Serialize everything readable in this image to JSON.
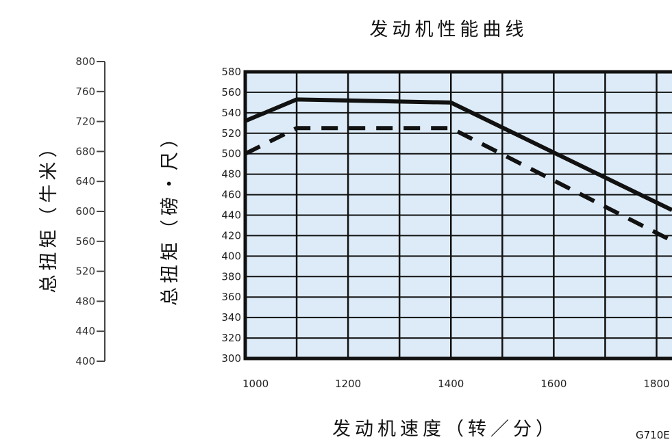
{
  "chart_data": {
    "type": "line",
    "title": "发动机性能曲线",
    "xlabel": "发动机速度（转／分）",
    "ylabel": "总扭矩（磅・尺）",
    "ylabel_secondary": "总扭矩（牛米）",
    "xlim": [
      1000,
      1830
    ],
    "ylim": [
      300,
      580
    ],
    "ylim_secondary": [
      400,
      800
    ],
    "x_ticks": [
      "1000",
      "1200",
      "1400",
      "1600",
      "1800"
    ],
    "y_ticks": [
      "300",
      "320",
      "340",
      "360",
      "380",
      "400",
      "420",
      "440",
      "460",
      "480",
      "500",
      "520",
      "540",
      "560",
      "580"
    ],
    "y_secondary_ticks": [
      "400",
      "440",
      "480",
      "520",
      "560",
      "600",
      "640",
      "680",
      "720",
      "760",
      "800"
    ],
    "grid": true,
    "series": [
      {
        "style": "solid",
        "x": [
          1000,
          1100,
          1400,
          1830
        ],
        "values": [
          532,
          553,
          550,
          445
        ]
      },
      {
        "style": "dashed",
        "x": [
          1000,
          1100,
          1400,
          1830
        ],
        "values": [
          500,
          525,
          525,
          415
        ]
      }
    ],
    "figure_code": "G710E"
  },
  "colors": {
    "plot_bg": "#dcebf7",
    "line": "#111111",
    "grid": "#111111"
  }
}
